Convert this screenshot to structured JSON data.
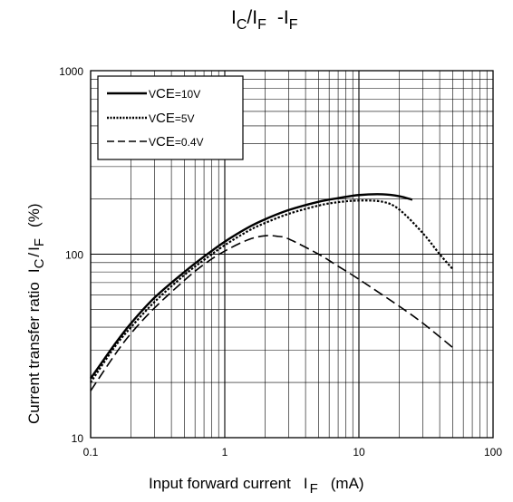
{
  "chart_data": {
    "type": "line",
    "title": {
      "I1": "I",
      "C": "C",
      "slash": "/",
      "I2": "I",
      "F1": "F",
      "dash": "-",
      "I3": "I",
      "F2": "F"
    },
    "xlabel": {
      "text": "Input forward current",
      "I": "I",
      "sub": "F",
      "unit": "(mA)"
    },
    "ylabel": {
      "text": "Current transfer ratio",
      "I1": "I",
      "sub1": "C",
      "slash": "/",
      "I2": "I",
      "sub2": "F",
      "unit": "(%)"
    },
    "xscale": "log",
    "yscale": "log",
    "xlim": [
      0.1,
      100
    ],
    "ylim": [
      10,
      1000
    ],
    "xticks": [
      {
        "value": 0.1,
        "label": "0.1"
      },
      {
        "value": 1,
        "label": "1"
      },
      {
        "value": 10,
        "label": "10"
      },
      {
        "value": 100,
        "label": "100"
      }
    ],
    "yticks": [
      {
        "value": 10,
        "label": "10"
      },
      {
        "value": 100,
        "label": "100"
      },
      {
        "value": 1000,
        "label": "1000"
      }
    ],
    "grid": true,
    "legend_position": "top-left",
    "series": [
      {
        "name": "VCE=10V",
        "legend": {
          "v": "V",
          "sub": "CE",
          "value": "=10V"
        },
        "style": "solid",
        "color": "#000000",
        "x": [
          0.1,
          0.15,
          0.2,
          0.3,
          0.5,
          0.7,
          1,
          1.5,
          2,
          3,
          5,
          7,
          10,
          15,
          20,
          25
        ],
        "y": [
          21,
          32,
          42,
          58,
          80,
          97,
          117,
          140,
          155,
          174,
          193,
          202,
          210,
          212,
          207,
          198
        ]
      },
      {
        "name": "VCE=5V",
        "legend": {
          "v": "V",
          "sub": "CE",
          "value": "=5V"
        },
        "style": "dotted",
        "color": "#000000",
        "x": [
          0.1,
          0.15,
          0.2,
          0.3,
          0.5,
          0.7,
          1,
          1.5,
          2,
          3,
          5,
          7,
          10,
          15,
          20,
          30,
          40,
          50
        ],
        "y": [
          20,
          31,
          40,
          55,
          77,
          93,
          112,
          134,
          148,
          166,
          184,
          192,
          196,
          193,
          175,
          130,
          100,
          83
        ]
      },
      {
        "name": "VCE=0.4V",
        "legend": {
          "v": "V",
          "sub": "CE",
          "value": "=0.4V"
        },
        "style": "dashed",
        "color": "#000000",
        "x": [
          0.1,
          0.15,
          0.2,
          0.3,
          0.5,
          0.7,
          1,
          1.5,
          2,
          2.5,
          3,
          5,
          7,
          10,
          20,
          30,
          50
        ],
        "y": [
          18,
          28,
          37,
          51,
          72,
          88,
          104,
          120,
          126,
          125,
          121,
          100,
          86,
          73,
          52,
          42,
          31
        ]
      }
    ]
  }
}
